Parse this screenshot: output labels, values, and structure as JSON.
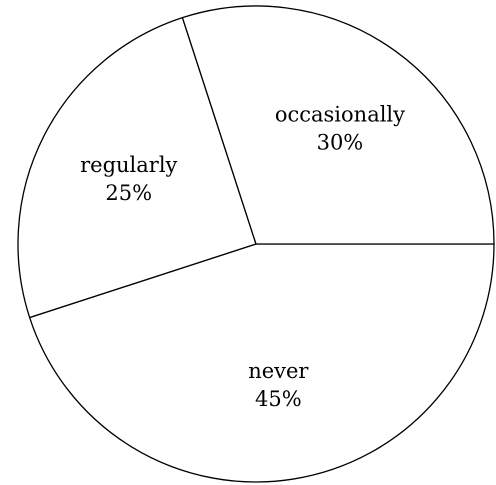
{
  "chart_data": {
    "type": "pie",
    "slices": [
      {
        "label": "never",
        "value": 45,
        "pct_text": "45%"
      },
      {
        "label": "regularly",
        "value": 25,
        "pct_text": "25%"
      },
      {
        "label": "occasionally",
        "value": 30,
        "pct_text": "30%"
      }
    ],
    "start_angle_deg": 0,
    "direction": "clockwise",
    "colors": {
      "fill": "#ffffff",
      "stroke": "#000000"
    },
    "legend": "none"
  }
}
